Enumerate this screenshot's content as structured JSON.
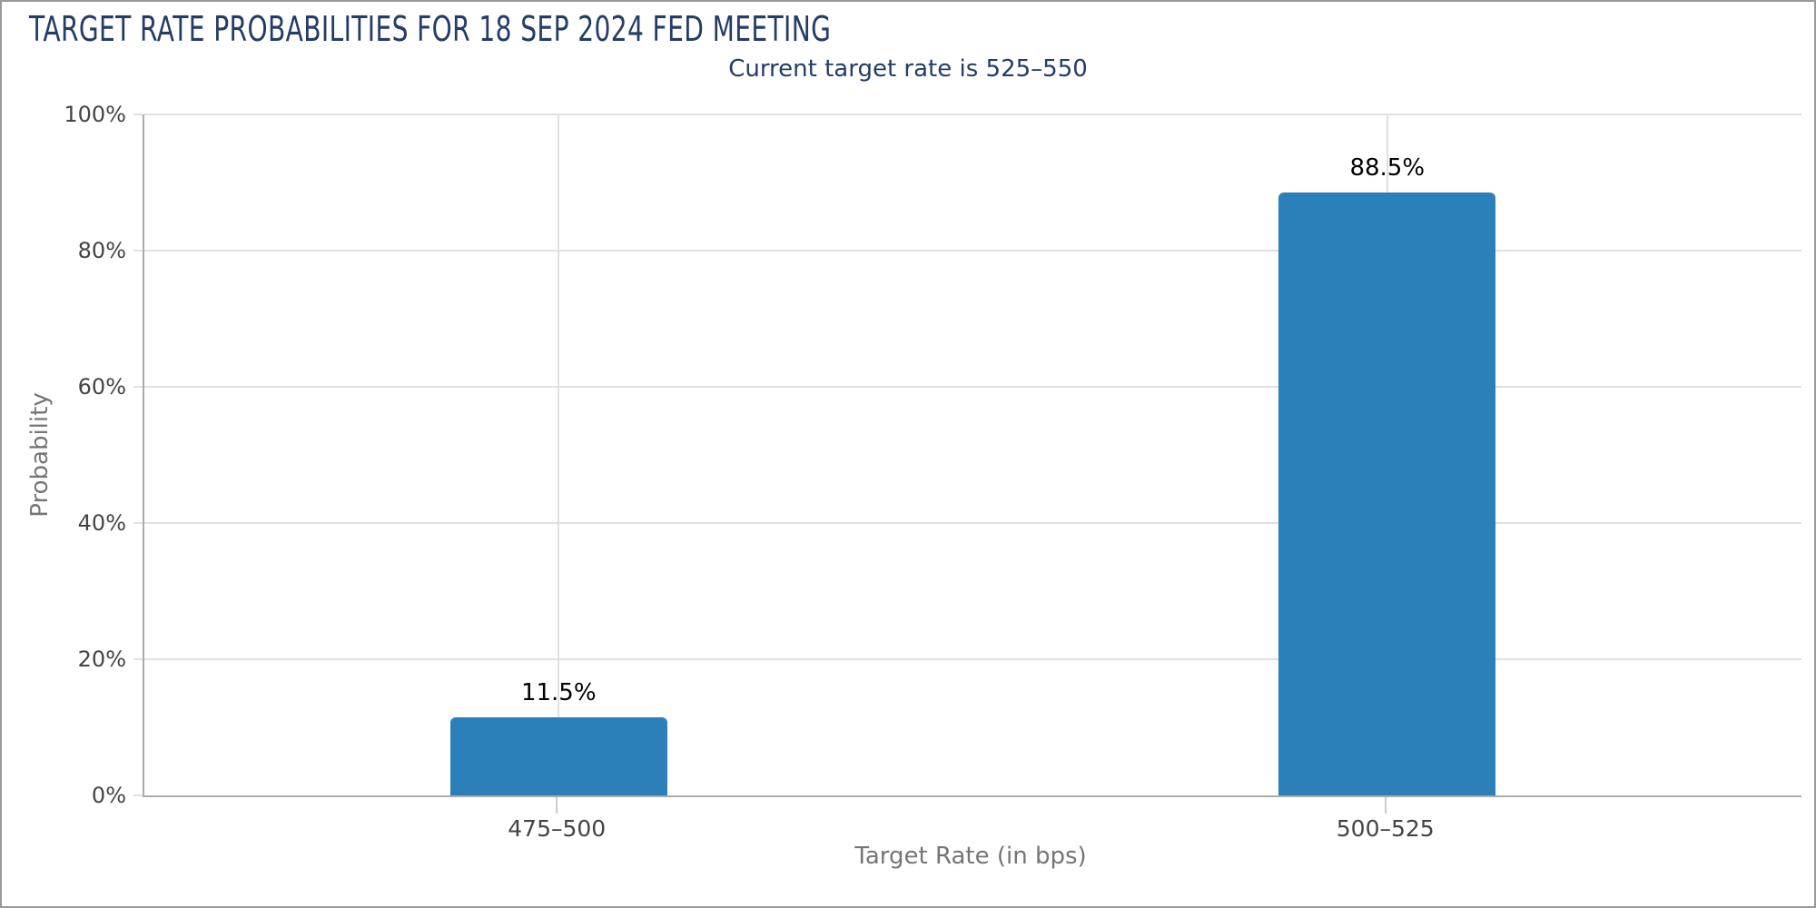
{
  "chart_data": {
    "type": "bar",
    "title": "TARGET RATE PROBABILITIES FOR 18 SEP 2024 FED MEETING",
    "subtitle": "Current target rate is 525–550",
    "categories": [
      "475–500",
      "500–525"
    ],
    "values": [
      11.5,
      88.5
    ],
    "bar_labels": [
      "11.5%",
      "88.5%"
    ],
    "xlabel": "Target Rate (in bps)",
    "ylabel": "Probability",
    "ylim": [
      0,
      100
    ],
    "yticks": [
      0,
      20,
      40,
      60,
      80,
      100
    ],
    "ytick_labels": [
      "0%",
      "20%",
      "40%",
      "60%",
      "80%",
      "100%"
    ],
    "grid": true,
    "legend": "none",
    "colors": {
      "bar": "#2C80B9",
      "title_text": "#253C66",
      "grid_line": "#E0E0E0",
      "axis_line": "#ABABAB",
      "tick_text": "#444444",
      "axis_title_text": "#757575",
      "data_label_text": "#000000",
      "background": "#FFFFFF",
      "border": "#999999"
    }
  }
}
